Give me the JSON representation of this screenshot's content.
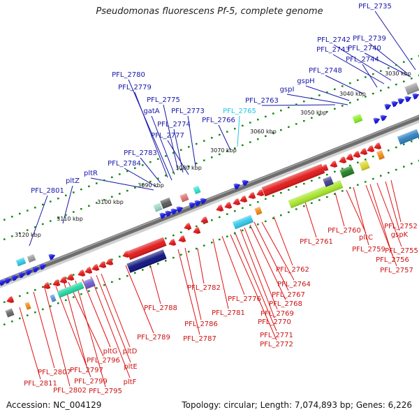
{
  "title": "Pseudomonas fluorescens Pf-5, complete genome",
  "accession": "Accession: NC_004129",
  "topology": "Topology: circular; Length: 7,074,893 bp; Genes: 6,226",
  "colors": {
    "forward": "#1010e0",
    "reverse": "#e01010",
    "backbone": "#6e6e6e",
    "ticks": "#0f8a0f",
    "highlight_label": "#1ec8e8"
  },
  "kbp_ticks": [
    "3030 kbp",
    "3040 kbp",
    "3050 kbp",
    "3060 kbp",
    "3070 kbp",
    "3080 kbp",
    "3090 kbp",
    "3100 kbp",
    "3110 kbp",
    "3120 kbp"
  ],
  "forward_labels": [
    "PFL_2735",
    "PFL_2739",
    "PFL_2742",
    "PFL_2740",
    "PFL_2743",
    "PFL_2744",
    "PFL_2748",
    "gspH",
    "gspI",
    "PFL_2763",
    "PFL_2765",
    "PFL_2766",
    "PFL_2773",
    "PFL_2775",
    "PFL_2774",
    "PFL_2777",
    "gatA",
    "PFL_2779",
    "PFL_2780",
    "PFL_2783",
    "PFL_2784",
    "pltR",
    "pltZ",
    "PFL_2801"
  ],
  "reverse_labels": [
    "PFL_2752",
    "gspK",
    "PFL_2755",
    "PFL_2756",
    "PFL_2757",
    "PFL_2759",
    "pltC",
    "PFL_2760",
    "PFL_2761",
    "PFL_2762",
    "PFL_2764",
    "PFL_2767",
    "PFL_2768",
    "PFL_2769",
    "PFL_2770",
    "PFL_2771",
    "PFL_2772",
    "PFL_2776",
    "PFL_2781",
    "PFL_2782",
    "PFL_2786",
    "PFL_2787",
    "PFL_2788",
    "PFL_2789",
    "pltD",
    "pltE",
    "pltF",
    "pltG",
    "PFL_2795",
    "PFL_2796",
    "PFL_2797",
    "PFL_2799",
    "PFL_2802",
    "PFL_2807",
    "PFL_2811"
  ]
}
